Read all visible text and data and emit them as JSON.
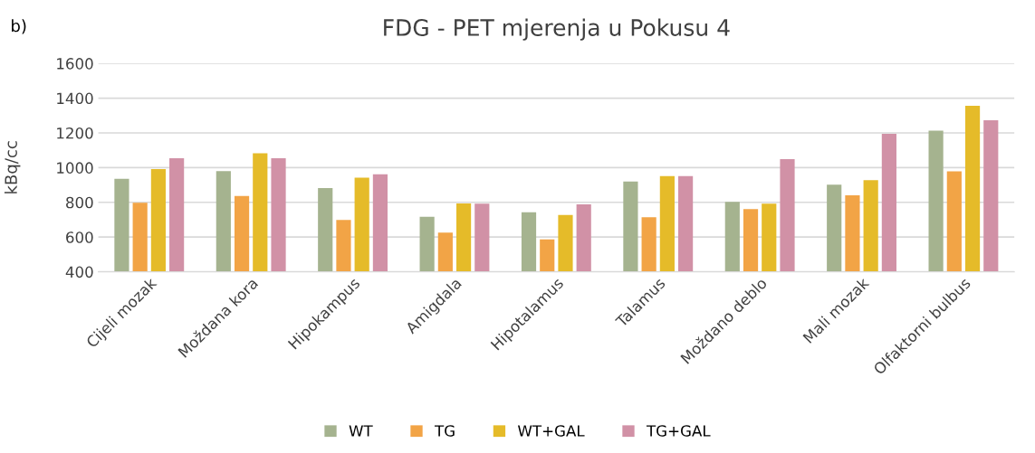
{
  "chart_data": {
    "type": "bar",
    "title": "FDG - PET mjerenja u Pokusu 4",
    "ylabel": "kBq/cc",
    "annotations": [
      "b)"
    ],
    "categories": [
      "Cijeli mozak",
      "Moždana kora",
      "Hipokampus",
      "Amigdala",
      "Hipotalamus",
      "Talamus",
      "Moždano deblo",
      "Mali mozak",
      "Olfaktorni bulbus"
    ],
    "series": [
      {
        "name": "WT",
        "color": "#a5b38f",
        "values": [
          935,
          980,
          882,
          717,
          743,
          920,
          803,
          902,
          1213
        ]
      },
      {
        "name": "TG",
        "color": "#f2a446",
        "values": [
          798,
          836,
          698,
          626,
          587,
          714,
          761,
          841,
          979
        ]
      },
      {
        "name": "WT+GAL",
        "color": "#e5bb29",
        "values": [
          992,
          1083,
          942,
          793,
          727,
          951,
          792,
          928,
          1356
        ]
      },
      {
        "name": "TG+GAL",
        "color": "#d191a6",
        "values": [
          1054,
          1054,
          961,
          792,
          789,
          951,
          1049,
          1195,
          1273
        ]
      }
    ],
    "ylim": [
      400,
      1600
    ],
    "yticks": [
      400,
      600,
      800,
      1000,
      1200,
      1400,
      1600
    ],
    "grid": "y",
    "legend": "bottom"
  }
}
